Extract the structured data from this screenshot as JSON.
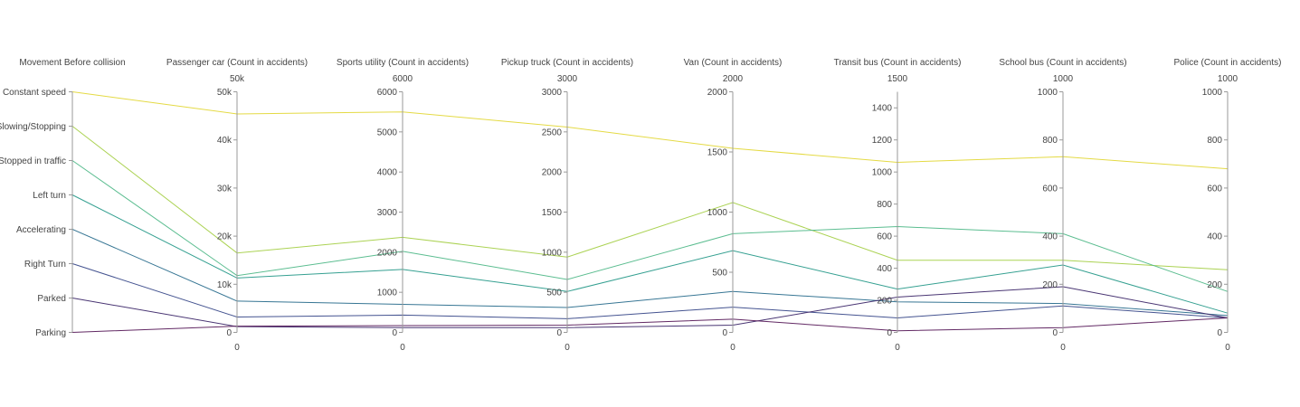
{
  "chart_data": {
    "type": "parallel_coordinates",
    "dimensions": [
      {
        "label": "Movement Before collision",
        "categorical": true,
        "categories": [
          "Constant speed",
          "Slowing/Stopping",
          "Stopped in traffic",
          "Left turn",
          "Accelerating",
          "Right Turn",
          "Parked",
          "Parking"
        ]
      },
      {
        "label": "Passenger car (Count in accidents)",
        "range": [
          0,
          50000
        ],
        "range_labels": [
          "50k",
          "0"
        ],
        "ticks": [
          0,
          10000,
          20000,
          30000,
          40000,
          50000
        ],
        "tick_labels": [
          "0",
          "10k",
          "20k",
          "30k",
          "40k",
          "50k"
        ]
      },
      {
        "label": "Sports utility (Count in accidents)",
        "range": [
          0,
          6000
        ],
        "range_labels": [
          "6000",
          "0"
        ],
        "ticks": [
          0,
          1000,
          2000,
          3000,
          4000,
          5000,
          6000
        ],
        "tick_labels": [
          "0",
          "1000",
          "2000",
          "3000",
          "4000",
          "5000",
          "6000"
        ]
      },
      {
        "label": "Pickup truck (Count in accidents)",
        "range": [
          0,
          3000
        ],
        "range_labels": [
          "3000",
          "0"
        ],
        "ticks": [
          0,
          500,
          1000,
          1500,
          2000,
          2500,
          3000
        ],
        "tick_labels": [
          "0",
          "500",
          "1000",
          "1500",
          "2000",
          "2500",
          "3000"
        ]
      },
      {
        "label": "Van (Count in accidents)",
        "range": [
          0,
          2000
        ],
        "range_labels": [
          "2000",
          "0"
        ],
        "ticks": [
          0,
          500,
          1000,
          1500,
          2000
        ],
        "tick_labels": [
          "0",
          "500",
          "1000",
          "1500",
          "2000"
        ]
      },
      {
        "label": "Transit bus (Count in accidents)",
        "range": [
          0,
          1500
        ],
        "range_labels": [
          "1500",
          "0"
        ],
        "ticks": [
          0,
          200,
          400,
          600,
          800,
          1000,
          1200,
          1400
        ],
        "tick_labels": [
          "0",
          "200",
          "400",
          "600",
          "800",
          "1000",
          "1200",
          "1400"
        ]
      },
      {
        "label": "School bus (Count in accidents)",
        "range": [
          0,
          1000
        ],
        "range_labels": [
          "1000",
          "0"
        ],
        "ticks": [
          0,
          200,
          400,
          600,
          800,
          1000
        ],
        "tick_labels": [
          "0",
          "200",
          "400",
          "600",
          "800",
          "1000"
        ]
      },
      {
        "label": "Police (Count in accidents)",
        "range": [
          0,
          1000
        ],
        "range_labels": [
          "1000",
          "0"
        ],
        "ticks": [
          0,
          200,
          400,
          600,
          800,
          1000
        ],
        "tick_labels": [
          "0",
          "200",
          "400",
          "600",
          "800",
          "1000"
        ]
      }
    ],
    "series": [
      {
        "category": "Constant speed",
        "values": [
          45400,
          5500,
          2560,
          1530,
          1060,
          730,
          680
        ],
        "color": "#e3d83a"
      },
      {
        "category": "Slowing/Stopping",
        "values": [
          16500,
          2370,
          940,
          1080,
          450,
          300,
          260
        ],
        "color": "#a6d04a"
      },
      {
        "category": "Stopped in traffic",
        "values": [
          11800,
          2020,
          660,
          820,
          660,
          410,
          170
        ],
        "color": "#52b98a"
      },
      {
        "category": "Left turn",
        "values": [
          11300,
          1570,
          510,
          680,
          270,
          280,
          80
        ],
        "color": "#2a9b8b"
      },
      {
        "category": "Accelerating",
        "values": [
          6500,
          700,
          310,
          340,
          190,
          120,
          70
        ],
        "color": "#2c6f8e"
      },
      {
        "category": "Right Turn",
        "values": [
          3200,
          430,
          170,
          210,
          90,
          110,
          60
        ],
        "color": "#3a4a8a"
      },
      {
        "category": "Parked",
        "values": [
          1200,
          120,
          60,
          60,
          220,
          190,
          60
        ],
        "color": "#3f2a6b"
      },
      {
        "category": "Parking",
        "values": [
          1300,
          170,
          90,
          110,
          10,
          20,
          60
        ],
        "color": "#5a1d5c"
      }
    ]
  }
}
